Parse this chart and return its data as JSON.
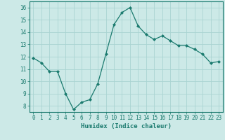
{
  "x": [
    0,
    1,
    2,
    3,
    4,
    5,
    6,
    7,
    8,
    9,
    10,
    11,
    12,
    13,
    14,
    15,
    16,
    17,
    18,
    19,
    20,
    21,
    22,
    23
  ],
  "y": [
    11.9,
    11.5,
    10.8,
    10.8,
    9.0,
    7.7,
    8.3,
    8.5,
    9.8,
    12.2,
    14.6,
    15.6,
    16.0,
    14.5,
    13.8,
    13.4,
    13.7,
    13.3,
    12.9,
    12.9,
    12.6,
    12.2,
    11.5,
    11.6
  ],
  "line_color": "#1a7a6e",
  "marker": "D",
  "marker_size": 2.0,
  "bg_color": "#cce9e7",
  "grid_color": "#aad4d2",
  "xlabel": "Humidex (Indice chaleur)",
  "xlim": [
    -0.5,
    23.5
  ],
  "ylim": [
    7.5,
    16.5
  ],
  "yticks": [
    8,
    9,
    10,
    11,
    12,
    13,
    14,
    15,
    16
  ],
  "xticks": [
    0,
    1,
    2,
    3,
    4,
    5,
    6,
    7,
    8,
    9,
    10,
    11,
    12,
    13,
    14,
    15,
    16,
    17,
    18,
    19,
    20,
    21,
    22,
    23
  ],
  "xlabel_fontsize": 6.5,
  "tick_fontsize": 5.5,
  "axis_color": "#1a7a6e",
  "linewidth": 0.9
}
